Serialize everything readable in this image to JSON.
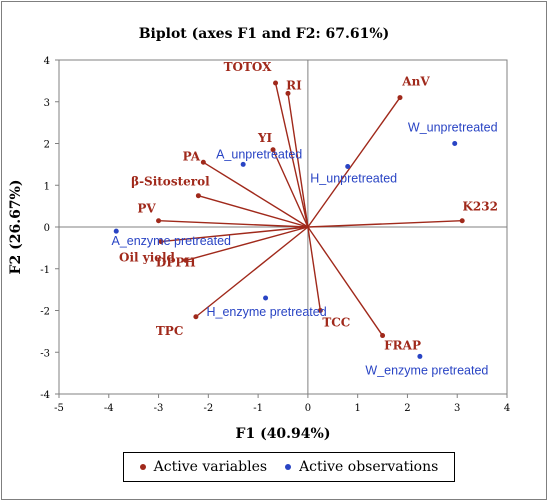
{
  "colors": {
    "variables": "#a0291b",
    "observations": "#2944c4",
    "axis": "#000000",
    "grid": "#808080"
  },
  "chart_data": {
    "type": "scatter",
    "title": "Biplot (axes F1 and F2: 67.61%)",
    "xlabel": "F1 (40.94%)",
    "ylabel": "F2 (26.67%)",
    "xlim": [
      -5,
      4
    ],
    "ylim": [
      -4,
      4
    ],
    "xticks": [
      -5,
      -4,
      -3,
      -2,
      -1,
      0,
      1,
      2,
      3,
      4
    ],
    "yticks": [
      -4,
      -3,
      -2,
      -1,
      0,
      1,
      2,
      3,
      4
    ],
    "legend_position": "bottom",
    "series": [
      {
        "name": "Active variables",
        "points": [
          {
            "label": "TOTOX",
            "x": -0.65,
            "y": 3.45
          },
          {
            "label": "RI",
            "x": -0.4,
            "y": 3.2
          },
          {
            "label": "AnV",
            "x": 1.85,
            "y": 3.1
          },
          {
            "label": "YI",
            "x": -0.7,
            "y": 1.85
          },
          {
            "label": "PA",
            "x": -2.1,
            "y": 1.55
          },
          {
            "label": "β-Sitosterol",
            "x": -2.2,
            "y": 0.75
          },
          {
            "label": "PV",
            "x": -3.0,
            "y": 0.15
          },
          {
            "label": "K232",
            "x": 3.1,
            "y": 0.15
          },
          {
            "label": "Oil yield",
            "x": -2.95,
            "y": -0.35
          },
          {
            "label": "DPPH",
            "x": -2.45,
            "y": -0.8
          },
          {
            "label": "TPC",
            "x": -2.25,
            "y": -2.15
          },
          {
            "label": "TCC",
            "x": 0.25,
            "y": -2.0
          },
          {
            "label": "FRAP",
            "x": 1.5,
            "y": -2.6
          }
        ]
      },
      {
        "name": "Active observations",
        "points": [
          {
            "label": "W_unpretreated",
            "x": 2.95,
            "y": 2.0
          },
          {
            "label": "H_unpretreated",
            "x": 0.8,
            "y": 1.45
          },
          {
            "label": "A_unpretreated",
            "x": -1.3,
            "y": 1.5
          },
          {
            "label": "A_enzyme pretreated",
            "x": -3.85,
            "y": -0.1
          },
          {
            "label": "H_enzyme pretreated",
            "x": -0.85,
            "y": -1.7
          },
          {
            "label": "W_enzyme pretreated",
            "x": 2.25,
            "y": -3.1
          }
        ]
      }
    ]
  }
}
